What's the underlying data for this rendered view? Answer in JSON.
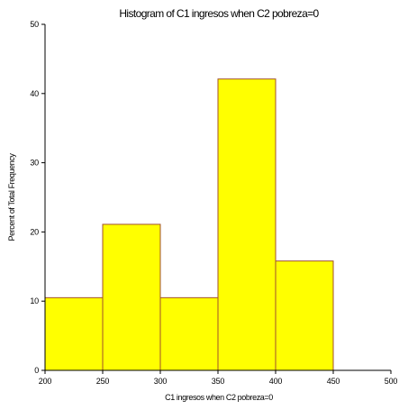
{
  "chart_data": {
    "type": "bar",
    "title": "Histogram of C1 ingresos when C2 pobreza=0",
    "xlabel": "C1 ingresos when C2 pobreza=0",
    "ylabel": "Percent of Total Frequency",
    "xlim": [
      200,
      500
    ],
    "ylim": [
      0,
      50
    ],
    "x_ticks": [
      "200",
      "250",
      "300",
      "350",
      "400",
      "450",
      "500"
    ],
    "y_ticks": [
      "0",
      "10",
      "20",
      "30",
      "40",
      "50"
    ],
    "bins": [
      {
        "start": 200,
        "end": 250,
        "value": 10.5
      },
      {
        "start": 250,
        "end": 300,
        "value": 21.1
      },
      {
        "start": 300,
        "end": 350,
        "value": 10.5
      },
      {
        "start": 350,
        "end": 400,
        "value": 42.1
      },
      {
        "start": 400,
        "end": 450,
        "value": 15.8
      }
    ],
    "colors": {
      "bar_fill": "#FFFF00",
      "bar_stroke": "#A0522D",
      "axis": "#000000"
    },
    "grid": false,
    "legend": "none"
  }
}
